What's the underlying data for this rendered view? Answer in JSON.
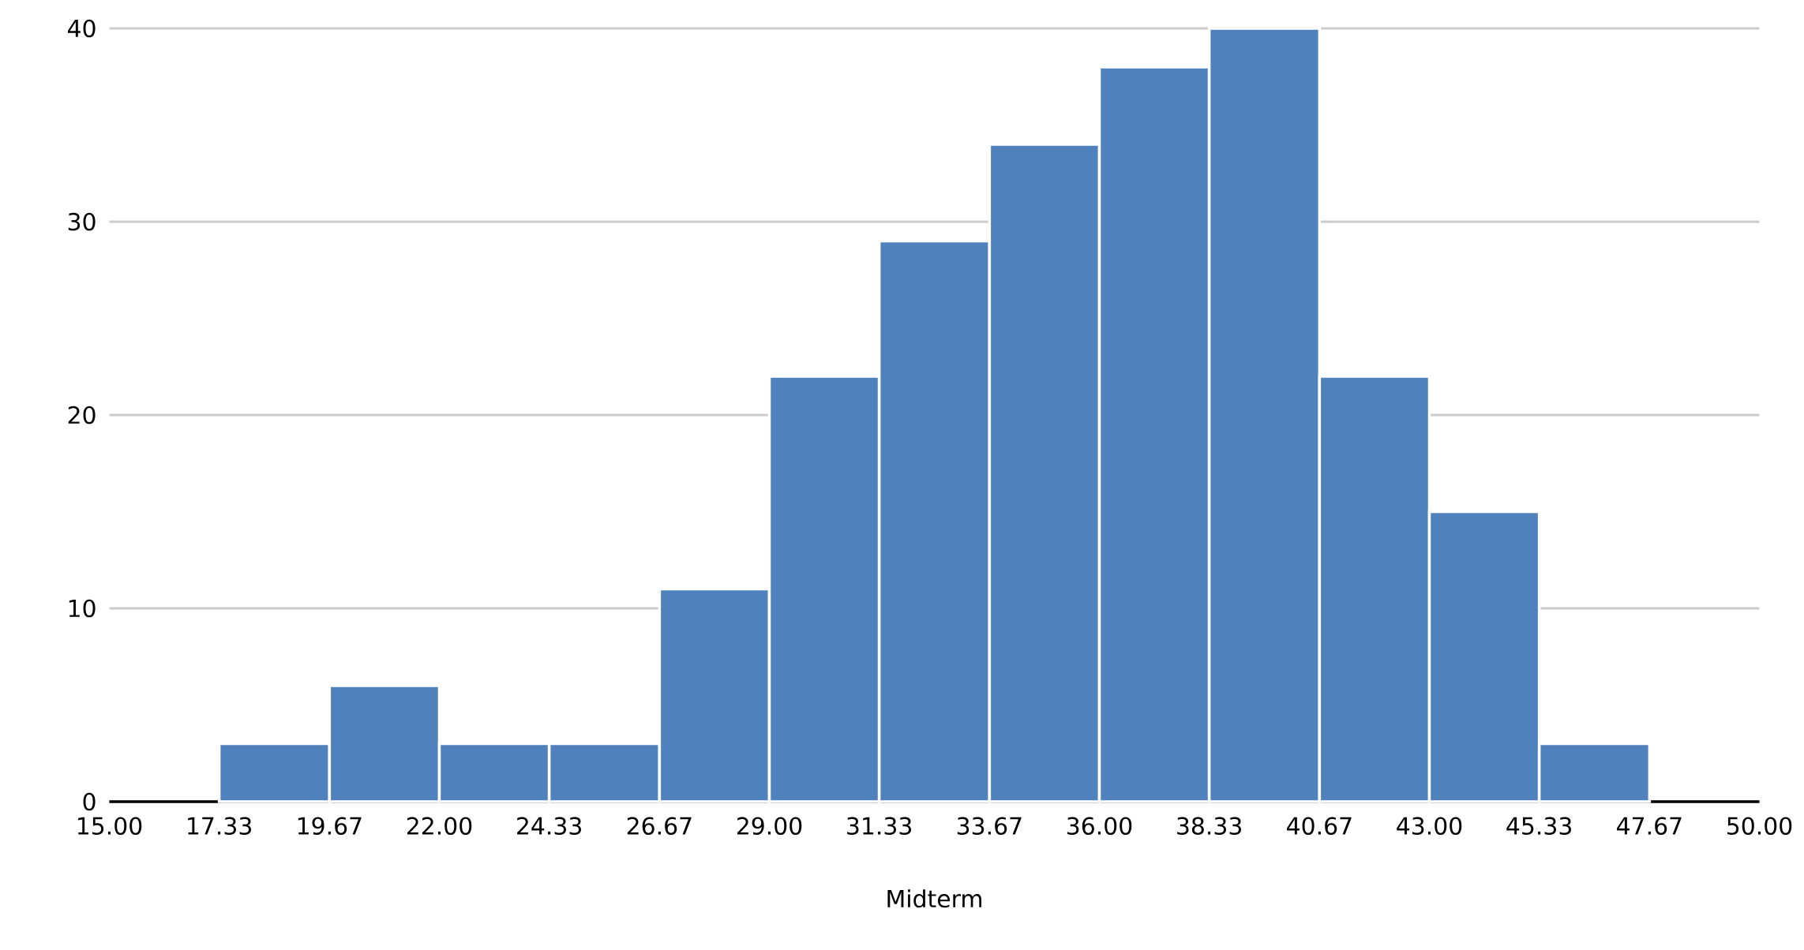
{
  "chart_data": {
    "type": "histogram",
    "xlabel": "Midterm",
    "bins": [
      17.33,
      19.67,
      22,
      24.33,
      26.67,
      29,
      31.33,
      33.67,
      36,
      38.33,
      40.67,
      43,
      45.33,
      47.67
    ],
    "values": [
      3,
      6,
      3,
      3,
      11,
      22,
      29,
      34,
      38,
      40,
      22,
      15,
      3
    ],
    "color": "#4f81bd",
    "xlim": [
      15,
      50
    ],
    "xticks": [
      {
        "value": 15,
        "label": "15.00"
      },
      {
        "value": 17.33,
        "label": "17.33"
      },
      {
        "value": 19.67,
        "label": "19.67"
      },
      {
        "value": 22,
        "label": "22.00"
      },
      {
        "value": 24.33,
        "label": "24.33"
      },
      {
        "value": 26.67,
        "label": "26.67"
      },
      {
        "value": 29,
        "label": "29.00"
      },
      {
        "value": 31.33,
        "label": "31.33"
      },
      {
        "value": 33.67,
        "label": "33.67"
      },
      {
        "value": 36,
        "label": "36.00"
      },
      {
        "value": 38.33,
        "label": "38.33"
      },
      {
        "value": 40.67,
        "label": "40.67"
      },
      {
        "value": 43,
        "label": "43.00"
      },
      {
        "value": 45.33,
        "label": "45.33"
      },
      {
        "value": 47.67,
        "label": "47.67"
      },
      {
        "value": 50,
        "label": "50.00"
      }
    ],
    "ylim": [
      0,
      40
    ],
    "yticks": [
      0,
      10,
      20,
      30,
      40
    ],
    "grid": "y"
  }
}
